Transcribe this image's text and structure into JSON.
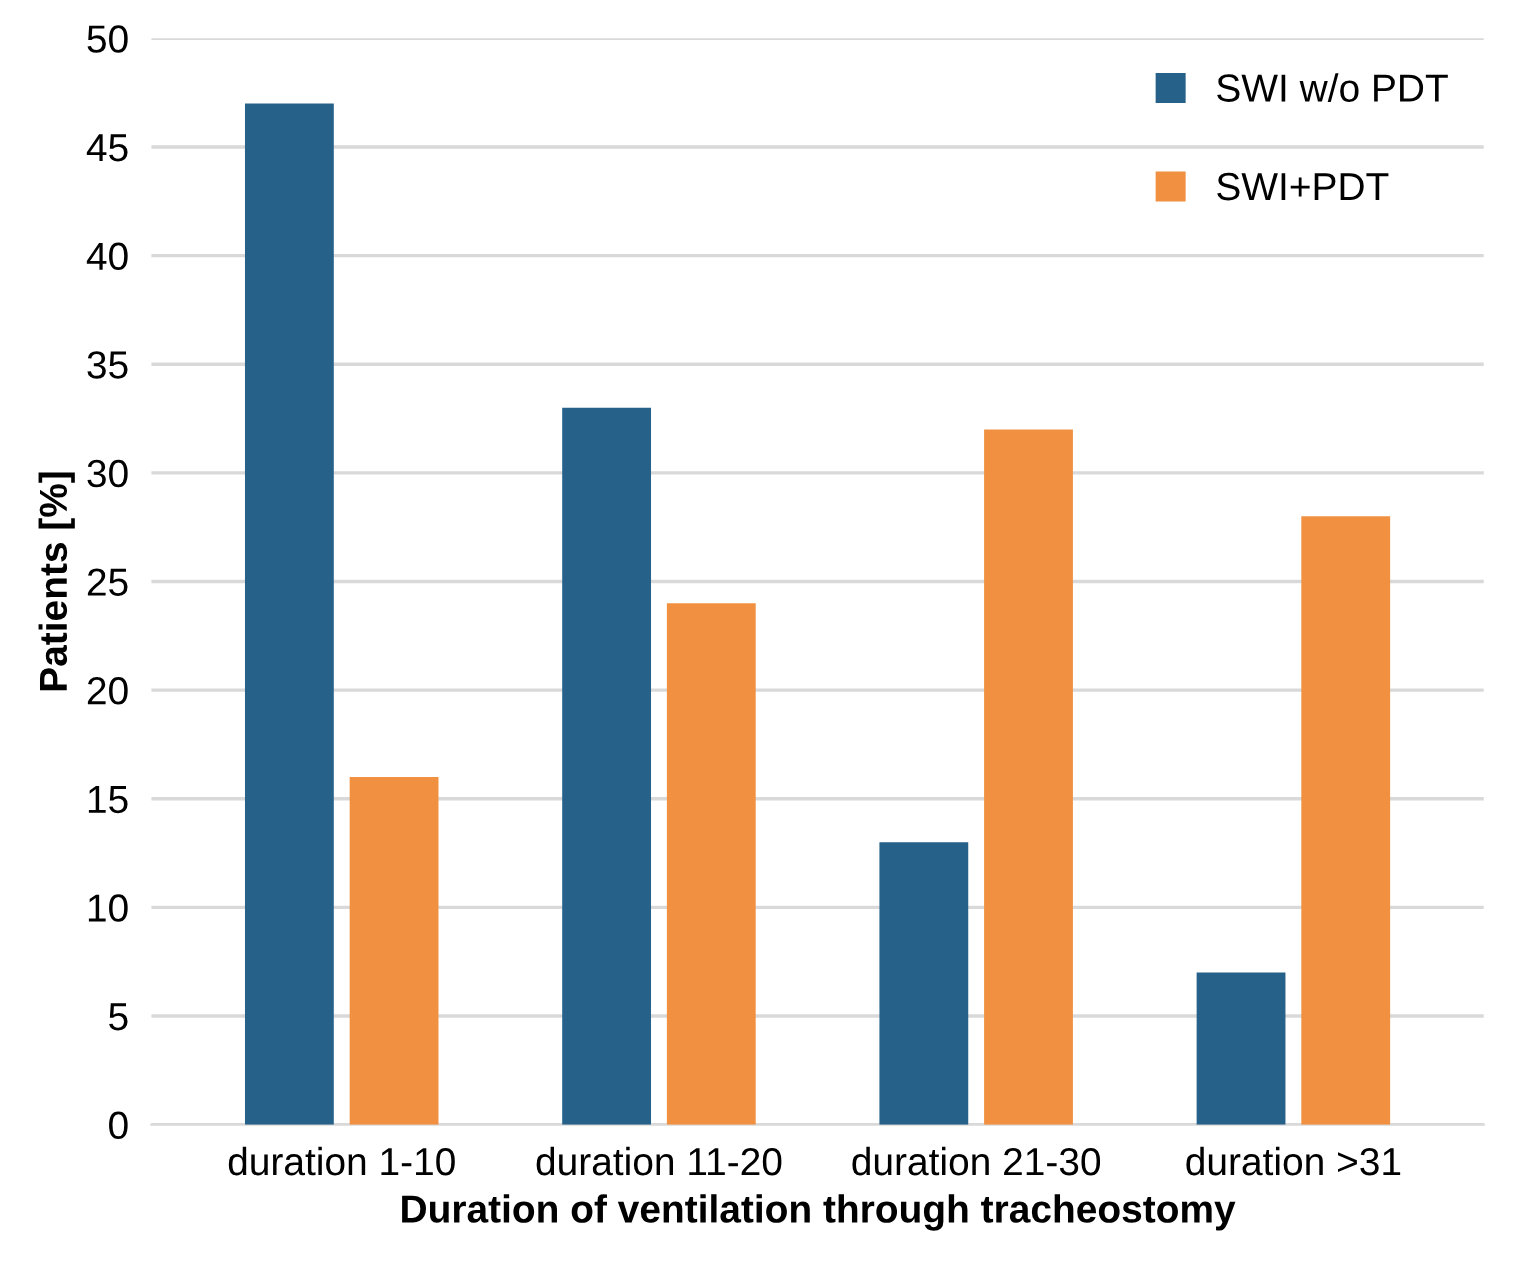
{
  "chart_data": {
    "type": "bar",
    "xlabel": "Duration of ventilation through tracheostomy",
    "ylabel": "Patients [%]",
    "categories": [
      "duration 1-10",
      "duration 11-20",
      "duration 21-30",
      "duration >31"
    ],
    "series": [
      {
        "name": "SWI w/o PDT",
        "color": "#26618a",
        "values": [
          47,
          33,
          13,
          7
        ]
      },
      {
        "name": "SWI+PDT",
        "color": "#f09040",
        "values": [
          16,
          24,
          32,
          28
        ]
      }
    ],
    "ylim": [
      0,
      50
    ],
    "yticks": [
      0,
      5,
      10,
      15,
      20,
      25,
      30,
      35,
      40,
      45,
      50
    ],
    "grid": "y",
    "legend": "top right"
  }
}
